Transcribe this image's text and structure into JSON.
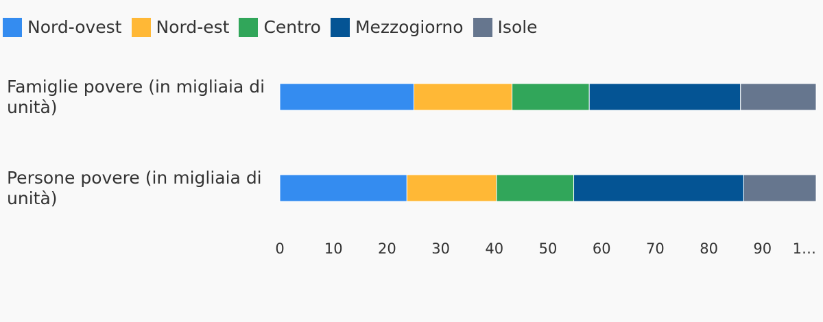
{
  "chart_data": {
    "type": "bar",
    "orientation": "horizontal",
    "stacked": true,
    "normalized_percent": true,
    "categories": [
      "Famiglie povere (in migliaia di unità)",
      "Persone povere (in migliaia di unità)"
    ],
    "series": [
      {
        "name": "Nord-ovest",
        "color": "#348cf0",
        "values": [
          25.0,
          23.7
        ]
      },
      {
        "name": "Nord-est",
        "color": "#ffb836",
        "values": [
          18.3,
          16.7
        ]
      },
      {
        "name": "Centro",
        "color": "#31a65a",
        "values": [
          14.4,
          14.4
        ]
      },
      {
        "name": "Mezzogiorno",
        "color": "#045494",
        "values": [
          28.2,
          31.7
        ]
      },
      {
        "name": "Isole",
        "color": "#66768e",
        "values": [
          14.1,
          13.5
        ]
      }
    ],
    "xlim": [
      0,
      100
    ],
    "xticks": [
      "0",
      "10",
      "20",
      "30",
      "40",
      "50",
      "60",
      "70",
      "80",
      "90",
      "1…"
    ],
    "grid": false,
    "legend_position": "top-left",
    "title": "",
    "xlabel": "",
    "ylabel": ""
  }
}
